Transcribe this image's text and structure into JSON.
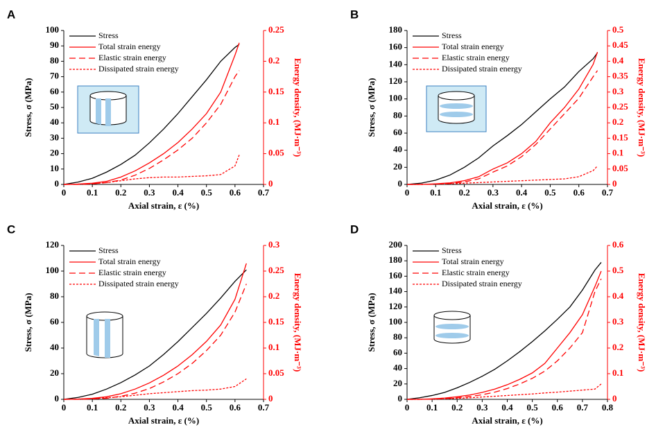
{
  "chart_data": [
    {
      "type": "line",
      "panel_label": "A",
      "xlabel": "Axial strain, ε (%)",
      "ylabel": "Stress, σ (MPa)",
      "y2label": "Energy density, (MJ·m⁻³)",
      "x": [
        0,
        0.05,
        0.1,
        0.15,
        0.2,
        0.25,
        0.3,
        0.35,
        0.4,
        0.45,
        0.5,
        0.55,
        0.6,
        0.615
      ],
      "xlim": [
        0,
        0.7
      ],
      "xticks": [
        0,
        0.1,
        0.2,
        0.3,
        0.4,
        0.5,
        0.6,
        0.7
      ],
      "ylim": [
        0,
        100
      ],
      "yticks": [
        0,
        10,
        20,
        30,
        40,
        50,
        60,
        70,
        80,
        90,
        100
      ],
      "y2lim": [
        0,
        0.25
      ],
      "y2ticks": [
        0,
        0.05,
        0.1,
        0.15,
        0.2,
        0.25
      ],
      "series": [
        {
          "name": "Stress",
          "color": "#000000",
          "linestyle": "solid",
          "values": [
            0,
            1.5,
            4,
            8,
            13,
            19,
            27,
            36,
            46,
            57,
            68,
            80,
            89,
            91
          ]
        },
        {
          "name": "Total strain energy",
          "color": "#ff0000",
          "linestyle": "solid",
          "axis": "y2",
          "values": [
            0,
            0.0005,
            0.002,
            0.005,
            0.012,
            0.022,
            0.035,
            0.05,
            0.068,
            0.09,
            0.115,
            0.15,
            0.21,
            0.23
          ]
        },
        {
          "name": "Elastic strain energy",
          "color": "#ff0000",
          "linestyle": "dashed",
          "axis": "y2",
          "values": [
            0,
            0,
            0.001,
            0.003,
            0.007,
            0.015,
            0.026,
            0.04,
            0.056,
            0.075,
            0.1,
            0.13,
            0.175,
            0.185
          ]
        },
        {
          "name": "Dissipated strain energy",
          "color": "#ff0000",
          "linestyle": "dotted",
          "axis": "y2",
          "values": [
            0,
            0.0005,
            0.001,
            0.003,
            0.006,
            0.009,
            0.011,
            0.012,
            0.012,
            0.013,
            0.014,
            0.016,
            0.03,
            0.048
          ]
        }
      ]
    },
    {
      "type": "line",
      "panel_label": "B",
      "xlabel": "Axial strain, ε (%)",
      "ylabel": "Stress, σ (MPa)",
      "y2label": "Energy density, (MJ·m⁻³)",
      "x": [
        0,
        0.05,
        0.1,
        0.15,
        0.2,
        0.25,
        0.3,
        0.35,
        0.4,
        0.45,
        0.5,
        0.55,
        0.6,
        0.65,
        0.665
      ],
      "xlim": [
        0,
        0.7
      ],
      "xticks": [
        0,
        0.1,
        0.2,
        0.3,
        0.4,
        0.5,
        0.6,
        0.7
      ],
      "ylim": [
        0,
        180
      ],
      "yticks": [
        0,
        20,
        40,
        60,
        80,
        100,
        120,
        140,
        160,
        180
      ],
      "y2lim": [
        0,
        0.5
      ],
      "y2ticks": [
        0,
        0.05,
        0.1,
        0.15,
        0.2,
        0.25,
        0.3,
        0.35,
        0.4,
        0.45,
        0.5
      ],
      "series": [
        {
          "name": "Stress",
          "color": "#000000",
          "linestyle": "solid",
          "values": [
            0,
            1.5,
            5,
            11,
            20,
            31,
            45,
            57,
            70,
            85,
            100,
            114,
            132,
            147,
            154
          ]
        },
        {
          "name": "Total strain energy",
          "color": "#ff0000",
          "linestyle": "solid",
          "axis": "y2",
          "values": [
            0,
            0,
            0.002,
            0.005,
            0.012,
            0.025,
            0.05,
            0.07,
            0.1,
            0.14,
            0.2,
            0.25,
            0.31,
            0.39,
            0.43
          ]
        },
        {
          "name": "Elastic strain energy",
          "color": "#ff0000",
          "linestyle": "dashed",
          "axis": "y2",
          "values": [
            0,
            0,
            0.001,
            0.003,
            0.008,
            0.018,
            0.04,
            0.06,
            0.09,
            0.13,
            0.18,
            0.23,
            0.28,
            0.35,
            0.37
          ]
        },
        {
          "name": "Dissipated strain energy",
          "color": "#ff0000",
          "linestyle": "dotted",
          "axis": "y2",
          "values": [
            0,
            0,
            0.001,
            0.002,
            0.004,
            0.006,
            0.008,
            0.01,
            0.012,
            0.014,
            0.016,
            0.018,
            0.025,
            0.045,
            0.06
          ]
        }
      ]
    },
    {
      "type": "line",
      "panel_label": "C",
      "xlabel": "Axial strain, ε (%)",
      "ylabel": "Stress, σ (MPa)",
      "y2label": "Energy density, (MJ·m⁻³)",
      "x": [
        0,
        0.05,
        0.1,
        0.15,
        0.2,
        0.25,
        0.3,
        0.35,
        0.4,
        0.45,
        0.5,
        0.55,
        0.6,
        0.64
      ],
      "xlim": [
        0,
        0.7
      ],
      "xticks": [
        0,
        0.1,
        0.2,
        0.3,
        0.4,
        0.5,
        0.6,
        0.7
      ],
      "ylim": [
        0,
        120
      ],
      "yticks": [
        0,
        20,
        40,
        60,
        80,
        100,
        120
      ],
      "y2lim": [
        0,
        0.3
      ],
      "y2ticks": [
        0,
        0.05,
        0.1,
        0.15,
        0.2,
        0.25,
        0.3
      ],
      "series": [
        {
          "name": "Stress",
          "color": "#000000",
          "linestyle": "solid",
          "values": [
            0,
            1.5,
            4,
            8,
            13,
            19,
            26,
            35,
            45,
            56,
            67,
            79,
            92,
            101
          ]
        },
        {
          "name": "Total strain energy",
          "color": "#ff0000",
          "linestyle": "solid",
          "axis": "y2",
          "values": [
            0,
            0.0005,
            0.002,
            0.005,
            0.011,
            0.02,
            0.032,
            0.047,
            0.065,
            0.087,
            0.113,
            0.145,
            0.195,
            0.265
          ]
        },
        {
          "name": "Elastic strain energy",
          "color": "#ff0000",
          "linestyle": "dashed",
          "axis": "y2",
          "values": [
            0,
            0,
            0.001,
            0.002,
            0.006,
            0.012,
            0.021,
            0.034,
            0.05,
            0.07,
            0.095,
            0.125,
            0.17,
            0.225
          ]
        },
        {
          "name": "Dissipated strain energy",
          "color": "#ff0000",
          "linestyle": "dotted",
          "axis": "y2",
          "values": [
            0,
            0.0005,
            0.001,
            0.003,
            0.005,
            0.008,
            0.011,
            0.013,
            0.015,
            0.017,
            0.018,
            0.02,
            0.025,
            0.04
          ]
        }
      ]
    },
    {
      "type": "line",
      "panel_label": "D",
      "xlabel": "Axial strain, ε (%)",
      "ylabel": "Stress, σ (MPa)",
      "y2label": "Energy density, (MJ·m⁻³)",
      "x": [
        0,
        0.05,
        0.1,
        0.15,
        0.2,
        0.25,
        0.3,
        0.35,
        0.4,
        0.45,
        0.5,
        0.55,
        0.6,
        0.65,
        0.7,
        0.75,
        0.775
      ],
      "xlim": [
        0,
        0.8
      ],
      "xticks": [
        0,
        0.1,
        0.2,
        0.3,
        0.4,
        0.5,
        0.6,
        0.7,
        0.8
      ],
      "ylim": [
        0,
        200
      ],
      "yticks": [
        0,
        20,
        40,
        60,
        80,
        100,
        120,
        140,
        160,
        180,
        200
      ],
      "y2lim": [
        0,
        0.6
      ],
      "y2ticks": [
        0,
        0.1,
        0.2,
        0.3,
        0.4,
        0.5,
        0.6
      ],
      "series": [
        {
          "name": "Stress",
          "color": "#000000",
          "linestyle": "solid",
          "values": [
            0,
            2,
            5,
            9,
            15,
            22,
            30,
            39,
            50,
            62,
            75,
            89,
            104,
            120,
            142,
            168,
            178
          ]
        },
        {
          "name": "Total strain energy",
          "color": "#ff0000",
          "linestyle": "solid",
          "axis": "y2",
          "values": [
            0,
            0,
            0.002,
            0.005,
            0.01,
            0.017,
            0.027,
            0.04,
            0.057,
            0.078,
            0.103,
            0.14,
            0.2,
            0.26,
            0.33,
            0.44,
            0.5
          ]
        },
        {
          "name": "Elastic strain energy",
          "color": "#ff0000",
          "linestyle": "dashed",
          "axis": "y2",
          "values": [
            0,
            0,
            0.001,
            0.003,
            0.006,
            0.011,
            0.018,
            0.028,
            0.042,
            0.06,
            0.082,
            0.11,
            0.15,
            0.2,
            0.26,
            0.42,
            0.47
          ]
        },
        {
          "name": "Dissipated strain energy",
          "color": "#ff0000",
          "linestyle": "dotted",
          "axis": "y2",
          "values": [
            0,
            0,
            0.001,
            0.002,
            0.004,
            0.006,
            0.009,
            0.012,
            0.015,
            0.018,
            0.021,
            0.025,
            0.028,
            0.032,
            0.036,
            0.04,
            0.06
          ]
        }
      ]
    }
  ]
}
